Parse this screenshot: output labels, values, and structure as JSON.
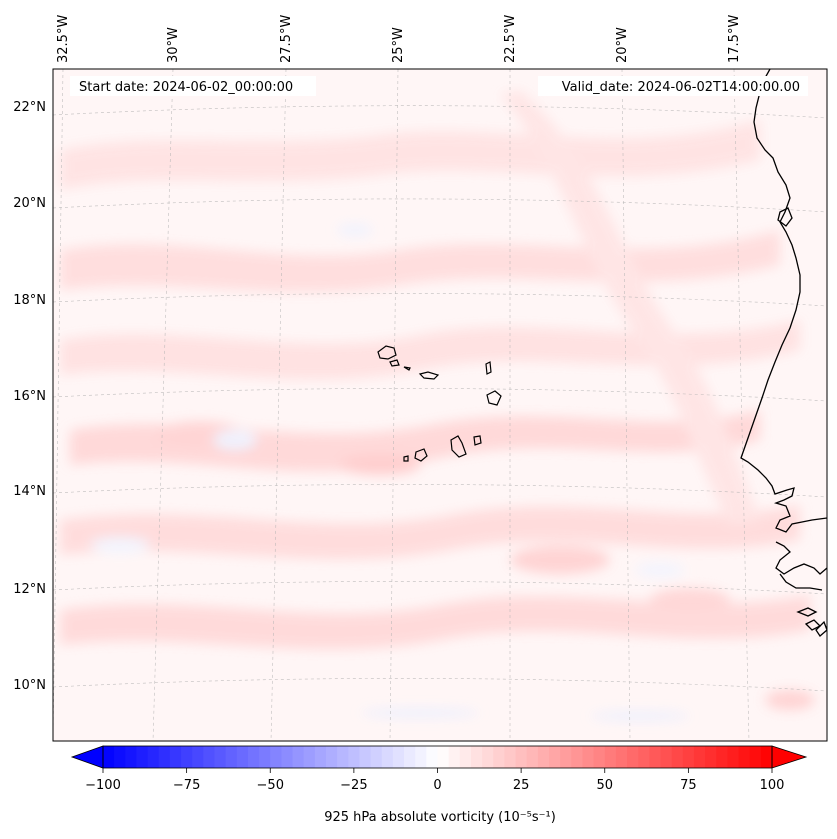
{
  "map": {
    "start_date_label": "Start date: 2024-06-02_00:00:00",
    "valid_date_label": "Valid_date: 2024-06-02T14:00:00.00",
    "lon_labels": [
      "32.5°W",
      "30°W",
      "27.5°W",
      "25°W",
      "22.5°W",
      "20°W",
      "17.5°W"
    ],
    "lat_labels": [
      "22°N",
      "20°N",
      "18°N",
      "16°N",
      "14°N",
      "12°N",
      "10°N"
    ],
    "field_colors": {
      "positive": "#ff0000",
      "negative": "#0000ff",
      "neutral": "#ffffff",
      "coastline": "#000000",
      "gridline": "#b0b0b0"
    }
  },
  "colorbar": {
    "ticks": [
      "−100",
      "−75",
      "−50",
      "−25",
      "0",
      "25",
      "50",
      "75",
      "100"
    ],
    "label": "925 hPa absolute vorticity (10⁻⁵s⁻¹)",
    "min": -100,
    "max": 100,
    "levels": 60
  }
}
